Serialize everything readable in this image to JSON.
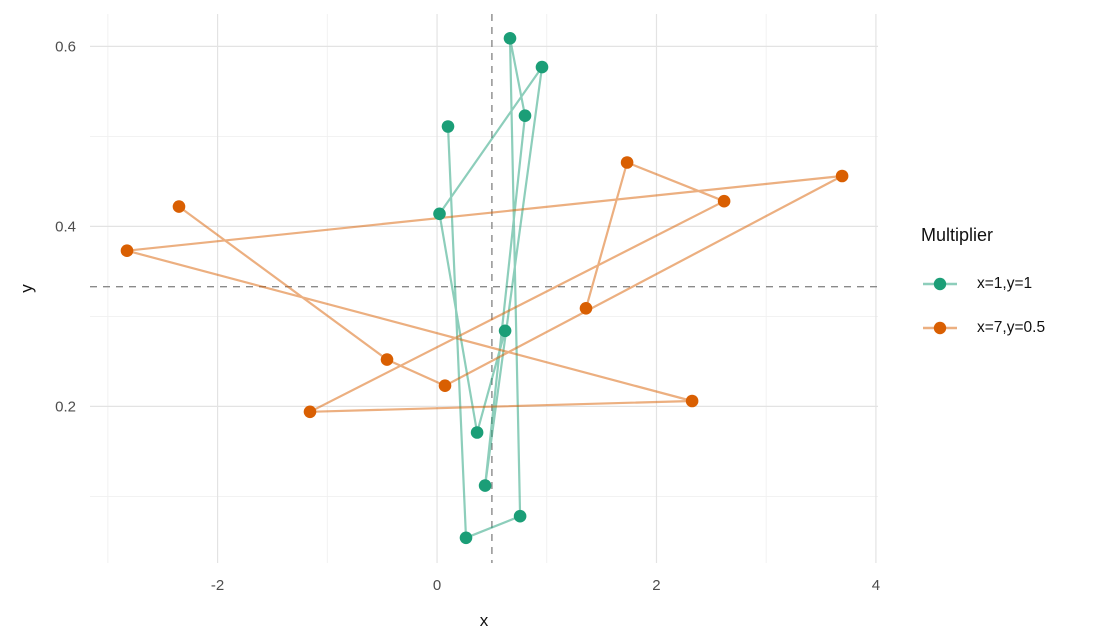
{
  "chart_data": {
    "type": "scatter",
    "subtype": "connected-path-scatter",
    "title": "",
    "xlabel": "x",
    "ylabel": "y",
    "xlim": [
      -3.163,
      4.019
    ],
    "ylim": [
      0.026,
      0.636
    ],
    "xticks": [
      -2,
      0,
      2,
      4
    ],
    "yticks": [
      0.2,
      0.4,
      0.6
    ],
    "x_minor_gridlines": [
      -3,
      -1,
      1,
      3
    ],
    "y_minor_gridlines": [
      0.1,
      0.3,
      0.5
    ],
    "grid": "on",
    "legend_position": "right",
    "reference_lines": {
      "style": "dashed",
      "color": "#8a8a8a",
      "vertical_x": 0.5,
      "horizontal_y": 0.333
    },
    "series": [
      {
        "name": "x=1,y=1",
        "point_color": "#1b9e77",
        "line_color": "rgba(27,158,119,0.5)",
        "points": [
          [
            0.1,
            0.511
          ],
          [
            0.264,
            0.054
          ],
          [
            0.757,
            0.078
          ],
          [
            0.665,
            0.609
          ],
          [
            0.802,
            0.523
          ],
          [
            0.438,
            0.112
          ],
          [
            0.957,
            0.577
          ],
          [
            0.022,
            0.414
          ],
          [
            0.365,
            0.171
          ],
          [
            0.62,
            0.284
          ]
        ]
      },
      {
        "name": "x=7,y=0.5",
        "point_color": "#d95f02",
        "line_color": "rgba(217,95,2,0.5)",
        "points": [
          [
            -2.352,
            0.422
          ],
          [
            -0.456,
            0.252
          ],
          [
            0.073,
            0.223
          ],
          [
            3.692,
            0.456
          ],
          [
            -2.826,
            0.373
          ],
          [
            2.325,
            0.206
          ],
          [
            -1.158,
            0.194
          ],
          [
            2.616,
            0.428
          ],
          [
            1.732,
            0.471
          ],
          [
            1.358,
            0.309
          ]
        ]
      }
    ]
  },
  "axes": {
    "x_title": "x",
    "y_title": "y",
    "x_tick_labels": [
      "-2",
      "0",
      "2",
      "4"
    ],
    "y_tick_labels": [
      "0.2",
      "0.4",
      "0.6"
    ]
  },
  "legend": {
    "title": "Multiplier",
    "items": [
      {
        "label": "x=1,y=1"
      },
      {
        "label": "x=7,y=0.5"
      }
    ]
  }
}
